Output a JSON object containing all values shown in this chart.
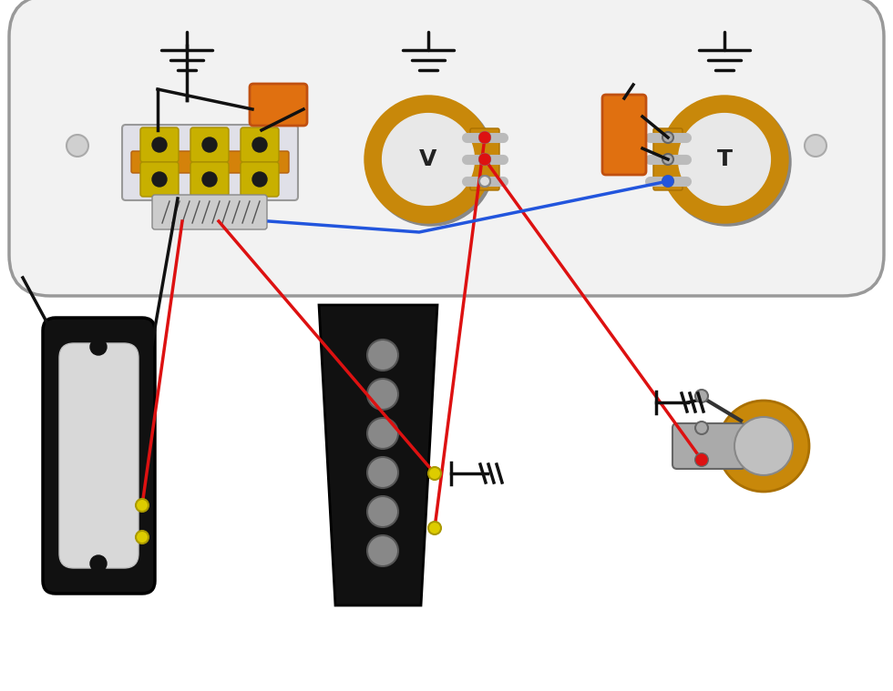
{
  "bg_color": "#ffffff",
  "plate_facecolor": "#f2f2f2",
  "plate_edgecolor": "#999999",
  "pot_outer_color": "#C8880A",
  "pot_inner_color": "#e8e8e8",
  "switch_body_color": "#e8e8ee",
  "switch_bar_color": "#D4820A",
  "switch_tab_color": "#C8B000",
  "cap_color": "#E07010",
  "wire_red": "#DD1111",
  "wire_blue": "#2255DD",
  "wire_black": "#111111",
  "wire_yellow": "#DDCC00",
  "ground_color": "#111111",
  "pickup_body_color": "#111111",
  "pickup_face_color": "#d8d8d8",
  "pole_color": "#888888",
  "jack_color": "#C8880A",
  "jack_barrel_color": "#aaaaaa",
  "lug_color": "#aaaaaa",
  "lug_edge": "#666666",
  "dot_red": "#DD1111",
  "dot_yellow": "#DDCC00"
}
